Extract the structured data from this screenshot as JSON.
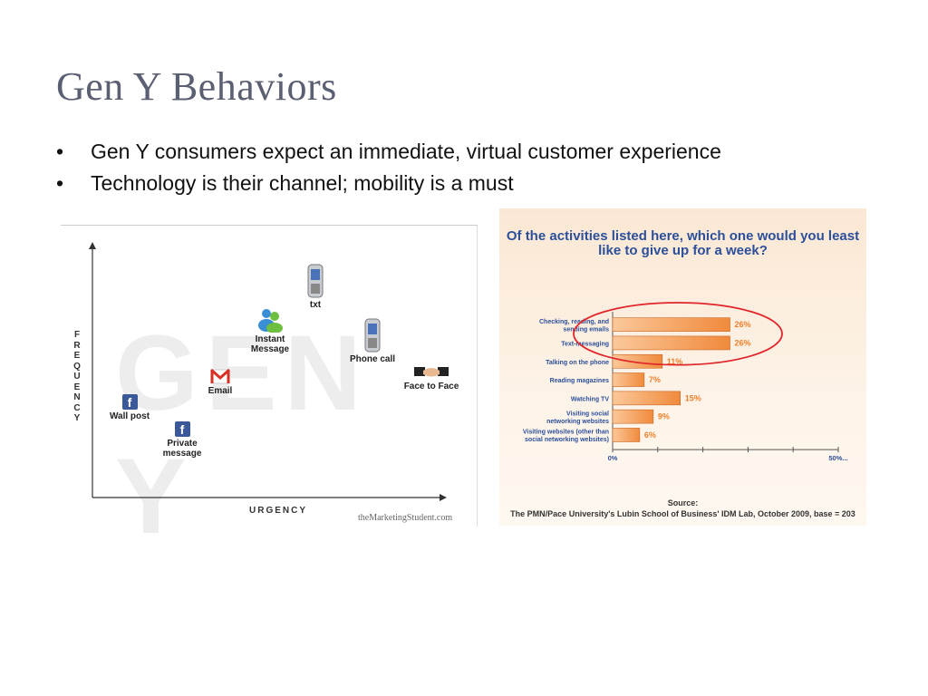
{
  "slide": {
    "title": "Gen Y Behaviors",
    "bullets": [
      "Gen Y consumers expect an immediate, virtual customer experience",
      "Technology is their channel; mobility is a must"
    ],
    "bullet_glyph": "•"
  },
  "diagram": {
    "watermark": "GEN Y",
    "y_axis_label": "FREQUENCY",
    "x_axis_label": "URGENCY",
    "credit": "theMarketingStudent.com",
    "nodes": {
      "wall_post": {
        "label": "Wall post",
        "icon": "facebook-icon"
      },
      "private_message": {
        "label1": "Private",
        "label2": "message",
        "icon": "facebook-icon"
      },
      "email": {
        "label": "Email",
        "icon": "gmail-icon"
      },
      "instant_message": {
        "label1": "Instant",
        "label2": "Message",
        "icon": "messenger-icon"
      },
      "txt": {
        "label": "txt",
        "icon": "mobile-phone-icon"
      },
      "phone_call": {
        "label": "Phone call",
        "icon": "mobile-phone-icon"
      },
      "face_to_face": {
        "label": "Face to Face",
        "icon": "handshake-icon"
      }
    },
    "fb_glyph": "f"
  },
  "chart_data": {
    "type": "bar",
    "orientation": "horizontal",
    "title": "Of the activities listed here, which one would you least like to give up for a week?",
    "categories": [
      [
        "Checking, reading, and",
        "sending emails"
      ],
      [
        "Text-messaging"
      ],
      [
        "Talking on the phone"
      ],
      [
        "Reading magazines"
      ],
      [
        "Watching TV"
      ],
      [
        "Visiting social",
        "networking websites"
      ],
      [
        "Visiting websites (other than",
        "social networking websites)"
      ]
    ],
    "values": [
      26,
      26,
      11,
      7,
      15,
      9,
      6
    ],
    "value_labels": [
      "26%",
      "26%",
      "11%",
      "7%",
      "15%",
      "9%",
      "6%"
    ],
    "xlim": [
      0,
      50
    ],
    "x_tick_labels": {
      "min": "0%",
      "max": "50%..."
    },
    "highlighted_categories": [
      0,
      1
    ],
    "source_label": "Source:",
    "source": "The PMN/Pace University's Lubin School of Business' IDM Lab, October 2009, base = 203",
    "colors": {
      "bar": "#f08a3c",
      "bar_light": "#fbc89a",
      "highlight_ring": "#e0262b",
      "title": "#2b4f9a",
      "value_label": "#f07f2a"
    }
  }
}
